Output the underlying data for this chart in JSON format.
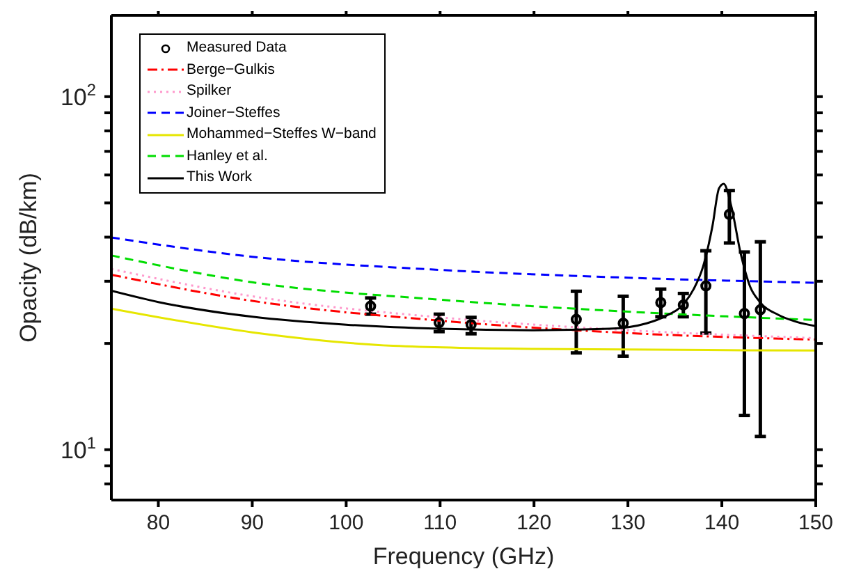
{
  "chart_data": {
    "type": "line",
    "xlabel": "Frequency (GHz)",
    "ylabel": "Opacity (dB/km)",
    "log": "y",
    "xlim": [
      75,
      150
    ],
    "xticks": [
      80,
      90,
      100,
      110,
      120,
      130,
      140,
      150
    ],
    "ylim": [
      7.2,
      170
    ],
    "yticks": [
      {
        "value": 8,
        "label": null
      },
      {
        "value": 9,
        "label": null
      },
      {
        "value": 10,
        "label": "10$^{1}$"
      },
      {
        "value": 20,
        "label": null
      },
      {
        "value": 30,
        "label": null
      },
      {
        "value": 40,
        "label": null
      },
      {
        "value": 50,
        "label": null
      },
      {
        "value": 60,
        "label": null
      },
      {
        "value": 70,
        "label": null
      },
      {
        "value": 80,
        "label": null
      },
      {
        "value": 90,
        "label": null
      },
      {
        "value": 100,
        "label": "10$^{2}$"
      }
    ],
    "legend": "top left",
    "series": [
      {
        "name": "Measured Data",
        "type": "scatter",
        "marker": "circle",
        "color": "#000000",
        "x": [
          102.6,
          109.9,
          113.3,
          124.5,
          129.5,
          133.5,
          135.9,
          138.3,
          140.8,
          142.4,
          144.1
        ],
        "values": [
          25.5,
          22.9,
          22.6,
          23.4,
          22.8,
          26.1,
          25.7,
          29.1,
          46.4,
          24.3,
          24.9
        ],
        "errors": [
          [
            24.2,
            26.9
          ],
          [
            21.6,
            24.2
          ],
          [
            21.3,
            23.7
          ],
          [
            18.8,
            28.1
          ],
          [
            18.4,
            27.2
          ],
          [
            23.8,
            28.5
          ],
          [
            23.8,
            27.7
          ],
          [
            21.4,
            36.6
          ],
          [
            38.5,
            54.2
          ],
          [
            12.5,
            36.3
          ],
          [
            10.9,
            38.8
          ]
        ]
      },
      {
        "name": "Berge−Gulkis",
        "line_style": "dashdot",
        "color": "#ff0000",
        "x": [
          75,
          90,
          110,
          130,
          150
        ],
        "values": [
          31.3,
          26.4,
          23.2,
          21.4,
          20.5
        ]
      },
      {
        "name": "Spilker",
        "line_style": "dotted",
        "color": "#ff99cc",
        "x": [
          75,
          90,
          110,
          130,
          150
        ],
        "values": [
          32.5,
          27.2,
          23.7,
          21.8,
          20.7
        ]
      },
      {
        "name": "Joiner−Steffes",
        "line_style": "dashed",
        "color": "#0000ff",
        "x": [
          75,
          90,
          110,
          130,
          150
        ],
        "values": [
          39.9,
          35.2,
          32.3,
          30.7,
          29.7
        ]
      },
      {
        "name": "Mohammed−Steffes W−band",
        "line_style": "solid",
        "color": "#e6e600",
        "x": [
          75,
          90,
          105,
          120,
          150
        ],
        "values": [
          25.1,
          21.5,
          19.7,
          19.3,
          19.1
        ]
      },
      {
        "name": "Hanley et al.",
        "line_style": "dashed",
        "color": "#00dd00",
        "x": [
          75,
          90,
          110,
          130,
          150
        ],
        "values": [
          35.5,
          29.8,
          26.6,
          24.6,
          23.3
        ]
      },
      {
        "name": "This Work",
        "line_style": "solid",
        "color": "#000000",
        "x": [
          75,
          80,
          90,
          100,
          110,
          120,
          128,
          132,
          134,
          136,
          137,
          138,
          139,
          139.7,
          140.2,
          141,
          142,
          143,
          144,
          146,
          148,
          150
        ],
        "values": [
          28.2,
          26.2,
          23.8,
          22.6,
          22.0,
          21.8,
          22.0,
          22.8,
          23.9,
          26.0,
          28.5,
          33,
          43,
          55,
          56.6,
          49,
          36,
          29,
          26.3,
          24.1,
          23,
          22.4
        ]
      }
    ]
  }
}
